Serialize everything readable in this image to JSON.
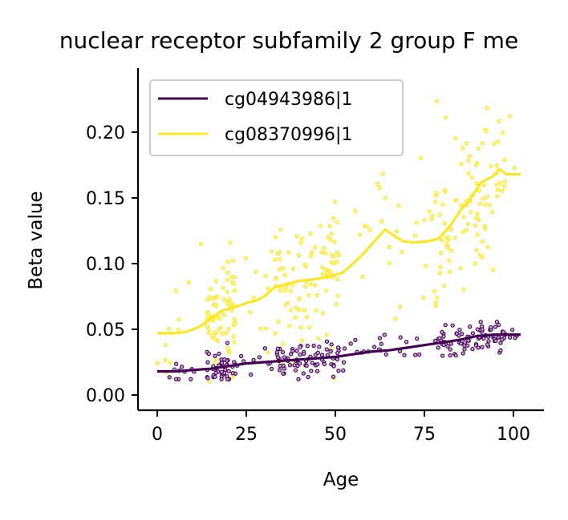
{
  "chart_data": {
    "type": "scatter",
    "title": "nuclear receptor subfamily 2 group F me",
    "xlabel": "Age",
    "ylabel": "Beta value",
    "xlim": [
      -5,
      107
    ],
    "ylim": [
      -0.012,
      0.247
    ],
    "xticks": [
      0,
      25,
      50,
      75,
      100
    ],
    "yticks": [
      0.0,
      0.05,
      0.1,
      0.15,
      0.2
    ],
    "xtick_labels": [
      "0",
      "25",
      "50",
      "75",
      "100"
    ],
    "ytick_labels": [
      "0.00",
      "0.05",
      "0.10",
      "0.15",
      "0.20"
    ],
    "grid": false,
    "legend_position": "top-left",
    "series": [
      {
        "name": "cg04943986|1",
        "color": "#440154",
        "trend": [
          [
            0,
            0.018
          ],
          [
            5,
            0.018
          ],
          [
            10,
            0.019
          ],
          [
            15,
            0.02
          ],
          [
            20,
            0.022
          ],
          [
            25,
            0.024
          ],
          [
            30,
            0.025
          ],
          [
            35,
            0.026
          ],
          [
            40,
            0.027
          ],
          [
            45,
            0.028
          ],
          [
            50,
            0.029
          ],
          [
            55,
            0.031
          ],
          [
            60,
            0.033
          ],
          [
            65,
            0.034
          ],
          [
            70,
            0.036
          ],
          [
            75,
            0.038
          ],
          [
            80,
            0.04
          ],
          [
            85,
            0.042
          ],
          [
            90,
            0.045
          ],
          [
            95,
            0.046
          ],
          [
            102,
            0.046
          ]
        ],
        "points_summary": {
          "x_range": [
            0,
            102
          ],
          "y_range": [
            0.012,
            0.065
          ],
          "count": 260,
          "seed": 11,
          "noise": 0.0065
        }
      },
      {
        "name": "cg08370996|1",
        "color": "#fde725",
        "trend": [
          [
            0,
            0.047
          ],
          [
            5,
            0.047
          ],
          [
            8,
            0.048
          ],
          [
            12,
            0.052
          ],
          [
            15,
            0.058
          ],
          [
            18,
            0.064
          ],
          [
            22,
            0.067
          ],
          [
            25,
            0.07
          ],
          [
            28,
            0.072
          ],
          [
            30,
            0.075
          ],
          [
            33,
            0.082
          ],
          [
            36,
            0.084
          ],
          [
            40,
            0.087
          ],
          [
            44,
            0.088
          ],
          [
            48,
            0.09
          ],
          [
            52,
            0.093
          ],
          [
            55,
            0.1
          ],
          [
            58,
            0.108
          ],
          [
            61,
            0.117
          ],
          [
            64,
            0.126
          ],
          [
            66,
            0.122
          ],
          [
            69,
            0.117
          ],
          [
            72,
            0.116
          ],
          [
            76,
            0.117
          ],
          [
            79,
            0.119
          ],
          [
            82,
            0.128
          ],
          [
            85,
            0.14
          ],
          [
            88,
            0.15
          ],
          [
            91,
            0.162
          ],
          [
            94,
            0.166
          ],
          [
            96,
            0.172
          ],
          [
            98,
            0.168
          ],
          [
            102,
            0.168
          ]
        ],
        "points_summary": {
          "x_range": [
            0,
            102
          ],
          "y_range": [
            0.0,
            0.235
          ],
          "count": 320,
          "seed": 29,
          "noise": 0.026
        }
      }
    ]
  }
}
